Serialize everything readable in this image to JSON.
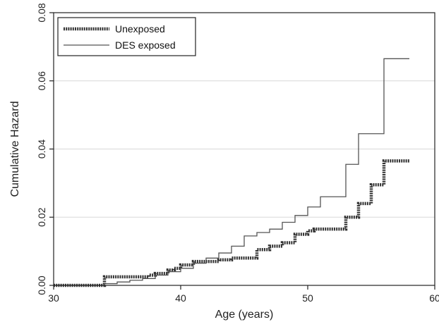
{
  "chart_data": {
    "type": "line",
    "step": true,
    "title": "",
    "xlabel": "Age (years)",
    "ylabel": "Cumulative Hazard",
    "xlim": [
      30,
      60
    ],
    "ylim": [
      0,
      0.08
    ],
    "xticks": [
      30,
      40,
      50,
      60
    ],
    "yticks": [
      0,
      0.02,
      0.04,
      0.06,
      0.08
    ],
    "xtick_labels": [
      "30",
      "40",
      "50",
      "60"
    ],
    "ytick_labels": [
      "0.00",
      "0.02",
      "0.04",
      "0.06",
      "0.08"
    ],
    "grid": "horizontal",
    "legend_position": "top-left",
    "series": [
      {
        "name": "Unexposed",
        "style": "thick-dotted",
        "color": "#333333",
        "x": [
          30,
          34,
          37,
          37.5,
          38,
          39,
          39.5,
          40,
          41,
          43,
          44,
          46,
          47,
          48,
          49,
          50,
          50.5,
          51,
          53,
          54,
          55,
          56,
          58
        ],
        "y": [
          0,
          0.0025,
          0.0025,
          0.003,
          0.0035,
          0.0045,
          0.005,
          0.006,
          0.007,
          0.0075,
          0.008,
          0.0105,
          0.0115,
          0.0125,
          0.015,
          0.016,
          0.0165,
          0.0165,
          0.02,
          0.024,
          0.0295,
          0.0365,
          0.0365
        ]
      },
      {
        "name": "DES exposed",
        "style": "thin",
        "color": "#555555",
        "x": [
          30,
          34,
          35,
          36,
          37,
          38,
          39,
          40,
          41,
          42,
          43,
          44,
          45,
          46,
          47,
          48,
          49,
          50,
          51,
          52,
          53,
          54,
          56,
          58
        ],
        "y": [
          0,
          0.0005,
          0.001,
          0.0015,
          0.002,
          0.003,
          0.004,
          0.005,
          0.0065,
          0.008,
          0.0095,
          0.0115,
          0.0145,
          0.0155,
          0.0165,
          0.0185,
          0.0205,
          0.023,
          0.026,
          0.026,
          0.0355,
          0.0445,
          0.0665,
          0.0665
        ]
      }
    ]
  }
}
